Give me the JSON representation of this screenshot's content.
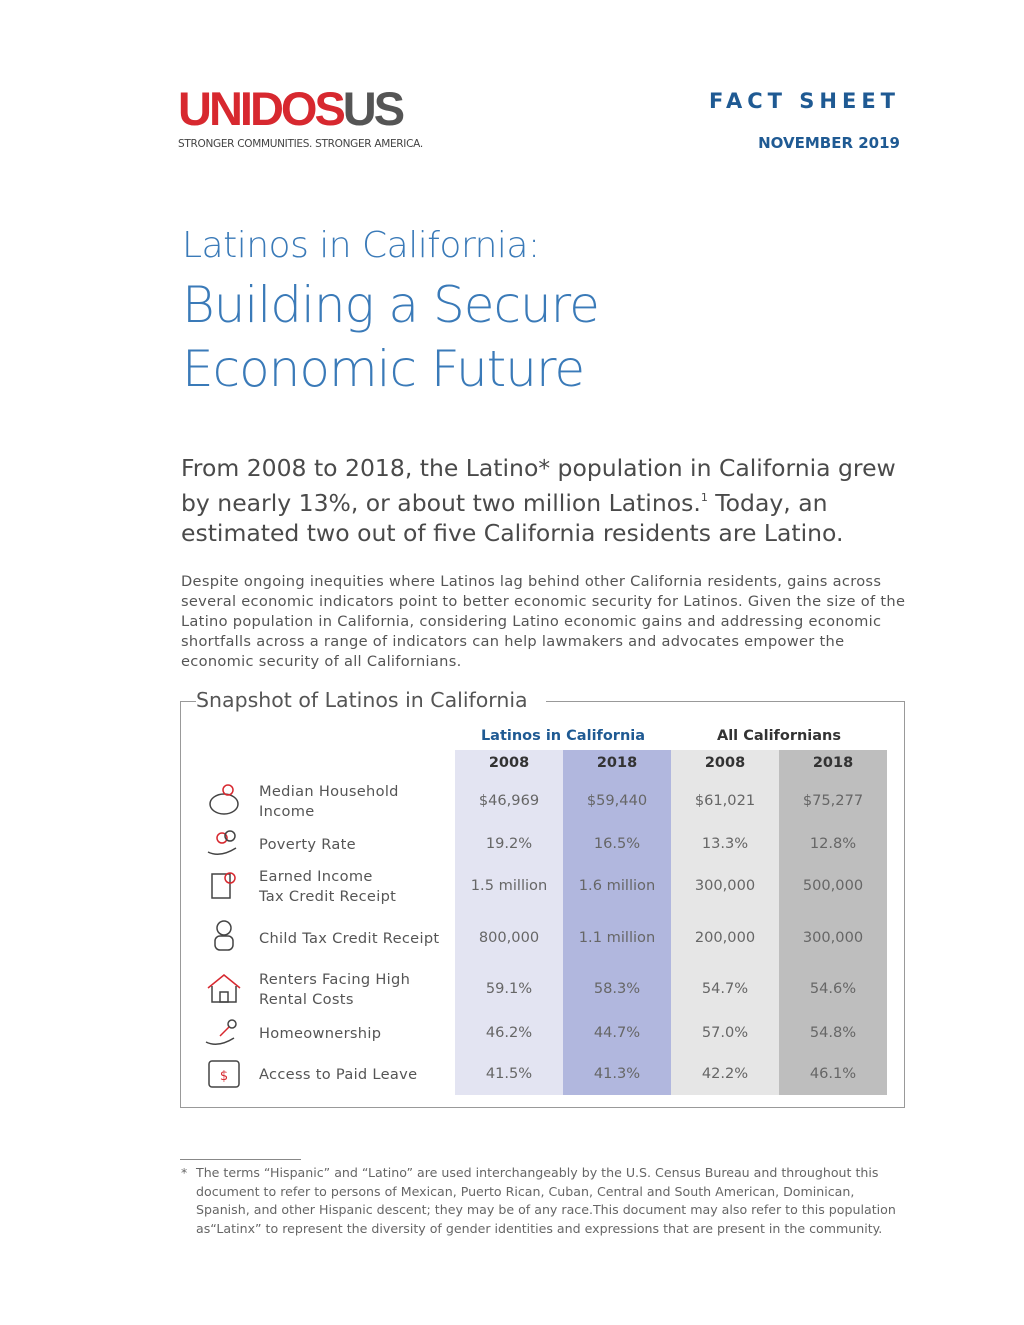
{
  "header": {
    "logo": {
      "name_red": "UNIDOS",
      "name_gray": "US",
      "tagline": "STRONGER COMMUNITIES.  STRONGER AMERICA."
    },
    "doc_type": "FACT SHEET",
    "date": "NOVEMBER 2019"
  },
  "title": {
    "kicker": "Latinos in California:",
    "lines": [
      "Building a Secure",
      "Economic Future"
    ]
  },
  "lead": {
    "before": "From 2008 to 2018, the Latino* population in California grew by nearly 13%, or about two million Latinos.",
    "note": "1",
    "after": " Today, an estimated two out of five California residents are Latino."
  },
  "body": "Despite ongoing inequities where Latinos lag behind other California residents, gains across several economic indicators point to better economic security for Latinos. Given the size of the Latino population in California, considering Latino economic gains and addressing economic shortfalls across a range of indicators can help lawmakers and advocates empower the economic security of all Californians.",
  "table": {
    "title": "Snapshot of Latinos in California",
    "groups": [
      "Latinos in California",
      "All Californians"
    ],
    "years": [
      "2008",
      "2018",
      "2008",
      "2018"
    ],
    "rows": [
      {
        "label": [
          "Median Household",
          "Income"
        ],
        "values": [
          "$46,969",
          "$59,440",
          "$61,021",
          "$75,277"
        ]
      },
      {
        "label": [
          "Poverty Rate"
        ],
        "values": [
          "19.2%",
          "16.5%",
          "13.3%",
          "12.8%"
        ]
      },
      {
        "label": [
          "Earned Income",
          "Tax Credit Receipt"
        ],
        "values": [
          "1.5 million",
          "1.6 million",
          "300,000",
          "500,000"
        ]
      },
      {
        "label": [
          "Child Tax Credit Receipt"
        ],
        "values": [
          "800,000",
          "1.1 million",
          "200,000",
          "300,000"
        ]
      },
      {
        "label": [
          "Renters Facing High",
          "Rental Costs"
        ],
        "values": [
          "59.1%",
          "58.3%",
          "54.7%",
          "54.6%"
        ]
      },
      {
        "label": [
          "Homeownership"
        ],
        "values": [
          "46.2%",
          "44.7%",
          "57.0%",
          "54.8%"
        ]
      },
      {
        "label": [
          "Access to Paid Leave"
        ],
        "values": [
          "41.5%",
          "41.3%",
          "42.2%",
          "46.1%"
        ]
      }
    ]
  },
  "footnote": {
    "marker": "*",
    "text": "The terms “Hispanic” and “Latino” are used interchangeably by the U.S. Census Bureau and throughout this document to refer to persons of Mexican, Puerto Rican, Cuban, Central and South American, Dominican, Spanish, and other Hispanic descent; they may be of any race.This document may also refer to this population as“Latinx” to represent the diversity of gender identities and expressions that are present in the community."
  }
}
